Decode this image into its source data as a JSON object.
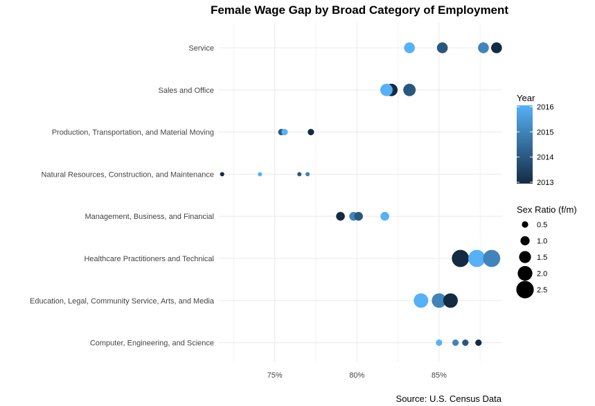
{
  "chart_data": {
    "type": "scatter",
    "title": "Female Wage Gap by Broad Category of Employment",
    "caption": "Source: U.S. Census Data",
    "xlabel": "",
    "ylabel": "",
    "xlim": [
      0.716,
      0.888
    ],
    "x_ticks": [
      0.75,
      0.8,
      0.85
    ],
    "x_tick_labels": [
      "75%",
      "80%",
      "85%"
    ],
    "grid": true,
    "categories": [
      "Service",
      "Sales and Office",
      "Production, Transportation, and Material Moving",
      "Natural Resources, Construction, and Maintenance",
      "Management, Business, and Financial",
      "Healthcare Practitioners and Technical",
      "Education, Legal, Community Service, Arts, and Media",
      "Computer, Engineering, and Science"
    ],
    "points": [
      {
        "category": "Service",
        "x": 0.832,
        "year": 2016,
        "ratio": 1.4
      },
      {
        "category": "Service",
        "x": 0.852,
        "year": 2014,
        "ratio": 1.4
      },
      {
        "category": "Service",
        "x": 0.877,
        "year": 2015,
        "ratio": 1.4
      },
      {
        "category": "Service",
        "x": 0.885,
        "year": 2013,
        "ratio": 1.4
      },
      {
        "category": "Sales and Office",
        "x": 0.821,
        "year": 2013,
        "ratio": 1.7
      },
      {
        "category": "Sales and Office",
        "x": 0.832,
        "year": 2014,
        "ratio": 1.7
      },
      {
        "category": "Sales and Office",
        "x": 0.818,
        "year": 2016,
        "ratio": 1.7
      },
      {
        "category": "Production, Transportation, and Material Moving",
        "x": 0.772,
        "year": 2013,
        "ratio": 0.55
      },
      {
        "category": "Production, Transportation, and Material Moving",
        "x": 0.754,
        "year": 2014,
        "ratio": 0.55
      },
      {
        "category": "Production, Transportation, and Material Moving",
        "x": 0.756,
        "year": 2016,
        "ratio": 0.55
      },
      {
        "category": "Natural Resources, Construction, and Maintenance",
        "x": 0.718,
        "year": 2013,
        "ratio": 0.15
      },
      {
        "category": "Natural Resources, Construction, and Maintenance",
        "x": 0.741,
        "year": 2016,
        "ratio": 0.15
      },
      {
        "category": "Natural Resources, Construction, and Maintenance",
        "x": 0.765,
        "year": 2014,
        "ratio": 0.15
      },
      {
        "category": "Natural Resources, Construction, and Maintenance",
        "x": 0.77,
        "year": 2015,
        "ratio": 0.15
      },
      {
        "category": "Management, Business, and Financial",
        "x": 0.79,
        "year": 2013,
        "ratio": 1.0
      },
      {
        "category": "Management, Business, and Financial",
        "x": 0.798,
        "year": 2015,
        "ratio": 1.0
      },
      {
        "category": "Management, Business, and Financial",
        "x": 0.801,
        "year": 2014,
        "ratio": 1.0
      },
      {
        "category": "Management, Business, and Financial",
        "x": 0.817,
        "year": 2016,
        "ratio": 1.0
      },
      {
        "category": "Healthcare Practitioners and Technical",
        "x": 0.863,
        "year": 2013,
        "ratio": 2.6
      },
      {
        "category": "Healthcare Practitioners and Technical",
        "x": 0.873,
        "year": 2016,
        "ratio": 2.6
      },
      {
        "category": "Healthcare Practitioners and Technical",
        "x": 0.882,
        "year": 2015,
        "ratio": 2.6
      },
      {
        "category": "Education, Legal, Community Service, Arts, and Media",
        "x": 0.839,
        "year": 2016,
        "ratio": 2.1
      },
      {
        "category": "Education, Legal, Community Service, Arts, and Media",
        "x": 0.85,
        "year": 2015,
        "ratio": 2.1
      },
      {
        "category": "Education, Legal, Community Service, Arts, and Media",
        "x": 0.857,
        "year": 2013,
        "ratio": 2.1
      },
      {
        "category": "Computer, Engineering, and Science",
        "x": 0.85,
        "year": 2016,
        "ratio": 0.55
      },
      {
        "category": "Computer, Engineering, and Science",
        "x": 0.86,
        "year": 2015,
        "ratio": 0.55
      },
      {
        "category": "Computer, Engineering, and Science",
        "x": 0.866,
        "year": 2014,
        "ratio": 0.55
      },
      {
        "category": "Computer, Engineering, and Science",
        "x": 0.874,
        "year": 2013,
        "ratio": 0.55
      }
    ],
    "legend_color": {
      "title": "Year",
      "range": [
        2013,
        2016
      ],
      "labels": [
        "2016",
        "2015",
        "2014",
        "2013"
      ],
      "low_color": "#132b43",
      "high_color": "#56b1f7"
    },
    "legend_size": {
      "title": "Sex Ratio (f/m)",
      "values": [
        0.5,
        1.0,
        1.5,
        2.0,
        2.5
      ],
      "labels": [
        "0.5",
        "1.0",
        "1.5",
        "2.0",
        "2.5"
      ]
    },
    "legend_position": "right",
    "colors": {
      "grid": "#ebebeb",
      "background": "#ffffff"
    }
  }
}
